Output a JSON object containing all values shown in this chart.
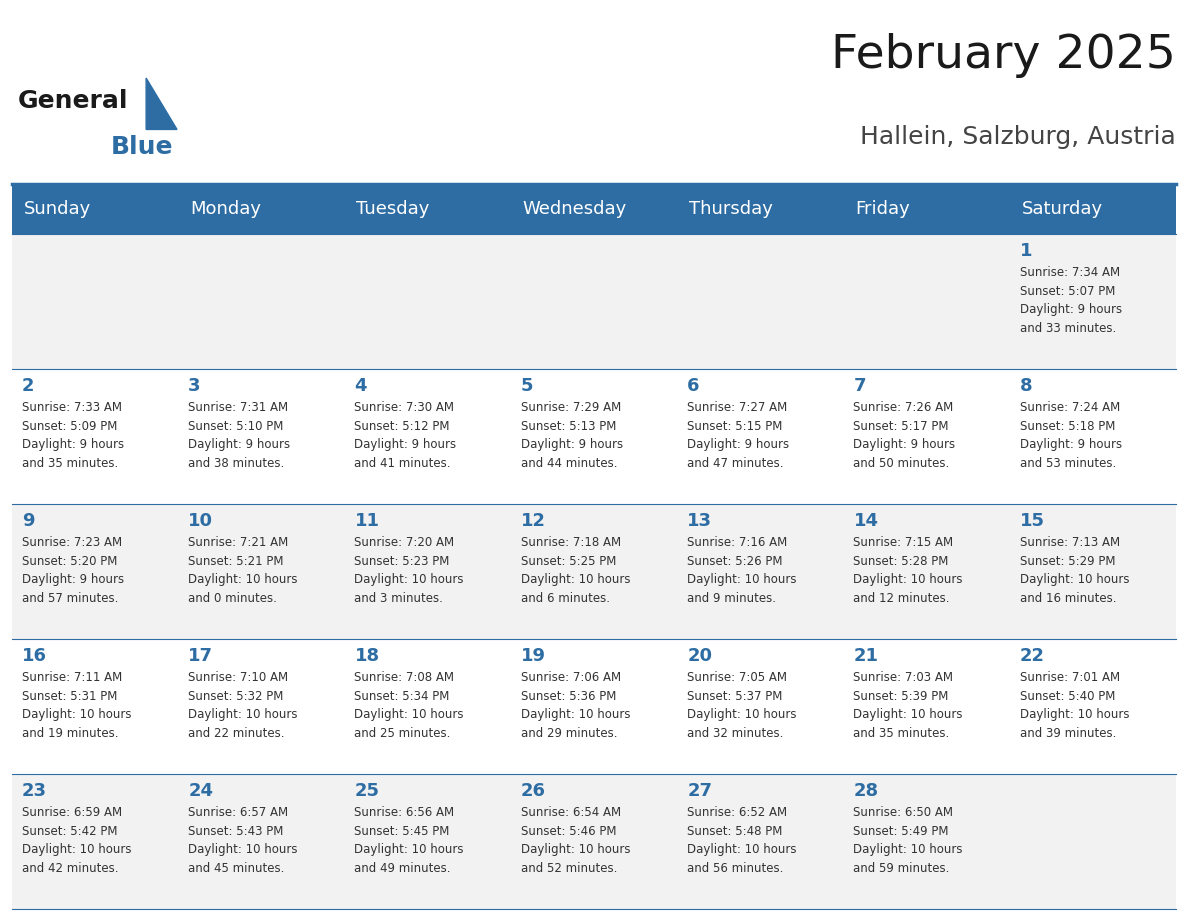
{
  "title": "February 2025",
  "subtitle": "Hallein, Salzburg, Austria",
  "header_bg": "#2E6DA4",
  "header_text_color": "#FFFFFF",
  "cell_bg_light": "#F2F2F2",
  "cell_bg_white": "#FFFFFF",
  "border_color": "#2E6DA4",
  "day_headers": [
    "Sunday",
    "Monday",
    "Tuesday",
    "Wednesday",
    "Thursday",
    "Friday",
    "Saturday"
  ],
  "text_color": "#333333",
  "day_num_color": "#2E6DA4",
  "logo_general_color": "#1a1a1a",
  "logo_blue_color": "#2E6DA4",
  "weeks": [
    [
      {
        "day": null,
        "info": ""
      },
      {
        "day": null,
        "info": ""
      },
      {
        "day": null,
        "info": ""
      },
      {
        "day": null,
        "info": ""
      },
      {
        "day": null,
        "info": ""
      },
      {
        "day": null,
        "info": ""
      },
      {
        "day": 1,
        "info": "Sunrise: 7:34 AM\nSunset: 5:07 PM\nDaylight: 9 hours\nand 33 minutes."
      }
    ],
    [
      {
        "day": 2,
        "info": "Sunrise: 7:33 AM\nSunset: 5:09 PM\nDaylight: 9 hours\nand 35 minutes."
      },
      {
        "day": 3,
        "info": "Sunrise: 7:31 AM\nSunset: 5:10 PM\nDaylight: 9 hours\nand 38 minutes."
      },
      {
        "day": 4,
        "info": "Sunrise: 7:30 AM\nSunset: 5:12 PM\nDaylight: 9 hours\nand 41 minutes."
      },
      {
        "day": 5,
        "info": "Sunrise: 7:29 AM\nSunset: 5:13 PM\nDaylight: 9 hours\nand 44 minutes."
      },
      {
        "day": 6,
        "info": "Sunrise: 7:27 AM\nSunset: 5:15 PM\nDaylight: 9 hours\nand 47 minutes."
      },
      {
        "day": 7,
        "info": "Sunrise: 7:26 AM\nSunset: 5:17 PM\nDaylight: 9 hours\nand 50 minutes."
      },
      {
        "day": 8,
        "info": "Sunrise: 7:24 AM\nSunset: 5:18 PM\nDaylight: 9 hours\nand 53 minutes."
      }
    ],
    [
      {
        "day": 9,
        "info": "Sunrise: 7:23 AM\nSunset: 5:20 PM\nDaylight: 9 hours\nand 57 minutes."
      },
      {
        "day": 10,
        "info": "Sunrise: 7:21 AM\nSunset: 5:21 PM\nDaylight: 10 hours\nand 0 minutes."
      },
      {
        "day": 11,
        "info": "Sunrise: 7:20 AM\nSunset: 5:23 PM\nDaylight: 10 hours\nand 3 minutes."
      },
      {
        "day": 12,
        "info": "Sunrise: 7:18 AM\nSunset: 5:25 PM\nDaylight: 10 hours\nand 6 minutes."
      },
      {
        "day": 13,
        "info": "Sunrise: 7:16 AM\nSunset: 5:26 PM\nDaylight: 10 hours\nand 9 minutes."
      },
      {
        "day": 14,
        "info": "Sunrise: 7:15 AM\nSunset: 5:28 PM\nDaylight: 10 hours\nand 12 minutes."
      },
      {
        "day": 15,
        "info": "Sunrise: 7:13 AM\nSunset: 5:29 PM\nDaylight: 10 hours\nand 16 minutes."
      }
    ],
    [
      {
        "day": 16,
        "info": "Sunrise: 7:11 AM\nSunset: 5:31 PM\nDaylight: 10 hours\nand 19 minutes."
      },
      {
        "day": 17,
        "info": "Sunrise: 7:10 AM\nSunset: 5:32 PM\nDaylight: 10 hours\nand 22 minutes."
      },
      {
        "day": 18,
        "info": "Sunrise: 7:08 AM\nSunset: 5:34 PM\nDaylight: 10 hours\nand 25 minutes."
      },
      {
        "day": 19,
        "info": "Sunrise: 7:06 AM\nSunset: 5:36 PM\nDaylight: 10 hours\nand 29 minutes."
      },
      {
        "day": 20,
        "info": "Sunrise: 7:05 AM\nSunset: 5:37 PM\nDaylight: 10 hours\nand 32 minutes."
      },
      {
        "day": 21,
        "info": "Sunrise: 7:03 AM\nSunset: 5:39 PM\nDaylight: 10 hours\nand 35 minutes."
      },
      {
        "day": 22,
        "info": "Sunrise: 7:01 AM\nSunset: 5:40 PM\nDaylight: 10 hours\nand 39 minutes."
      }
    ],
    [
      {
        "day": 23,
        "info": "Sunrise: 6:59 AM\nSunset: 5:42 PM\nDaylight: 10 hours\nand 42 minutes."
      },
      {
        "day": 24,
        "info": "Sunrise: 6:57 AM\nSunset: 5:43 PM\nDaylight: 10 hours\nand 45 minutes."
      },
      {
        "day": 25,
        "info": "Sunrise: 6:56 AM\nSunset: 5:45 PM\nDaylight: 10 hours\nand 49 minutes."
      },
      {
        "day": 26,
        "info": "Sunrise: 6:54 AM\nSunset: 5:46 PM\nDaylight: 10 hours\nand 52 minutes."
      },
      {
        "day": 27,
        "info": "Sunrise: 6:52 AM\nSunset: 5:48 PM\nDaylight: 10 hours\nand 56 minutes."
      },
      {
        "day": 28,
        "info": "Sunrise: 6:50 AM\nSunset: 5:49 PM\nDaylight: 10 hours\nand 59 minutes."
      },
      {
        "day": null,
        "info": ""
      }
    ]
  ]
}
